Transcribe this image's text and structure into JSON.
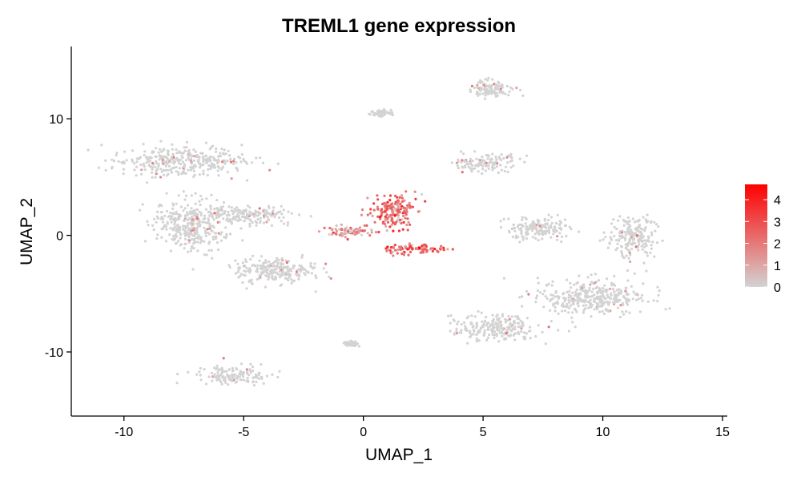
{
  "chart_data": {
    "type": "scatter",
    "title": "TREML1 gene expression",
    "xlabel": "UMAP_1",
    "ylabel": "UMAP_2",
    "xlim": [
      -12.2,
      15.2
    ],
    "ylim": [
      -15.5,
      16.2
    ],
    "x_ticks": [
      -10,
      -5,
      0,
      5,
      10,
      15
    ],
    "y_ticks": [
      -10,
      0,
      10
    ],
    "x_tick_labels": [
      "-10",
      "-5",
      "0",
      "5",
      "10",
      "15"
    ],
    "y_tick_labels": [
      "-10",
      "0",
      "10"
    ],
    "grid": false,
    "legend": {
      "position": "right",
      "type": "colorbar",
      "color_low": "#D3D3D3",
      "color_high": "#FF0000",
      "range": [
        0,
        4.7
      ],
      "ticks": [
        0,
        1,
        2,
        3,
        4
      ],
      "tick_labels": [
        "0",
        "1",
        "2",
        "3",
        "4"
      ]
    },
    "clusters": [
      {
        "name": "upper-left",
        "center": [
          -7.7,
          6.4
        ],
        "spread": [
          2.3,
          1.2
        ],
        "expression": 0.05
      },
      {
        "name": "left-middle",
        "center": [
          -7.2,
          0.8
        ],
        "spread": [
          1.4,
          2.0
        ],
        "expression": 0.05
      },
      {
        "name": "left-lower",
        "center": [
          -3.6,
          -3.0
        ],
        "spread": [
          1.7,
          1.0
        ],
        "expression": 0.05
      },
      {
        "name": "bridge-left",
        "center": [
          -4.8,
          1.8
        ],
        "spread": [
          1.6,
          0.7
        ],
        "expression": 0.05
      },
      {
        "name": "bottom-left",
        "center": [
          -5.4,
          -12.0
        ],
        "spread": [
          1.4,
          0.7
        ],
        "expression": 0.1
      },
      {
        "name": "tiny-bottom",
        "center": [
          -0.5,
          -9.3
        ],
        "spread": [
          0.25,
          0.2
        ],
        "expression": 0.2
      },
      {
        "name": "top-small",
        "center": [
          0.8,
          10.5
        ],
        "spread": [
          0.5,
          0.3
        ],
        "expression": 0.0
      },
      {
        "name": "top-right",
        "center": [
          5.4,
          12.5
        ],
        "spread": [
          0.8,
          0.7
        ],
        "expression": 0.15
      },
      {
        "name": "right-upper",
        "center": [
          5.2,
          6.2
        ],
        "spread": [
          1.3,
          0.6
        ],
        "expression": 0.15
      },
      {
        "name": "right-middle",
        "center": [
          7.3,
          0.6
        ],
        "spread": [
          1.2,
          0.9
        ],
        "expression": 0.1
      },
      {
        "name": "right-arm",
        "center": [
          11.2,
          -0.1
        ],
        "spread": [
          0.9,
          1.6
        ],
        "expression": 0.05
      },
      {
        "name": "right-lower",
        "center": [
          9.6,
          -5.3
        ],
        "spread": [
          2.0,
          1.4
        ],
        "expression": 0.08
      },
      {
        "name": "bottom-right",
        "center": [
          5.5,
          -7.9
        ],
        "spread": [
          1.7,
          1.0
        ],
        "expression": 0.08
      },
      {
        "name": "treml1-high-upper",
        "center": [
          1.2,
          2.0
        ],
        "spread": [
          0.9,
          1.3
        ],
        "expression": 2.3
      },
      {
        "name": "treml1-high-lower",
        "center": [
          2.1,
          -1.2
        ],
        "spread": [
          1.2,
          0.4
        ],
        "expression": 2.6
      },
      {
        "name": "treml1-trail",
        "center": [
          -0.6,
          0.3
        ],
        "spread": [
          0.8,
          0.4
        ],
        "expression": 1.3
      }
    ]
  }
}
